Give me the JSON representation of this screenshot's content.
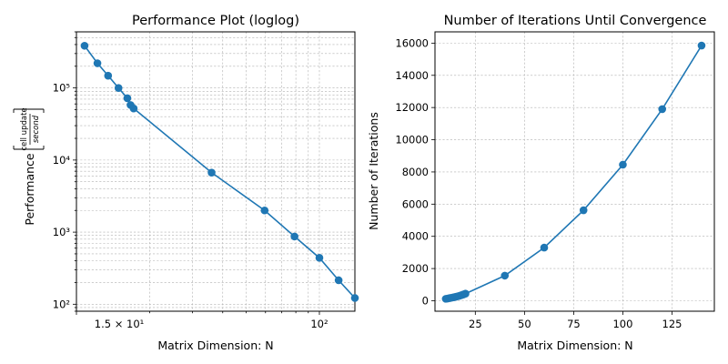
{
  "chart_data": [
    {
      "type": "line",
      "title": "Performance Plot (loglog)",
      "xlabel": "Matrix Dimension: N",
      "ylabel_prefix": "Performance",
      "ylabel_fraction": {
        "numerator": "cell update",
        "denominator": "second"
      },
      "xscale": "log",
      "yscale": "log",
      "xlim": [
        10,
        140
      ],
      "ylim": [
        80,
        600000
      ],
      "grid": true,
      "x_tick_labels": [
        {
          "value": 15,
          "label": "1.5 × 10¹"
        },
        {
          "value": 100,
          "label": "10²"
        }
      ],
      "y_tick_labels": [
        {
          "value": 100,
          "label": "10²"
        },
        {
          "value": 1000,
          "label": "10³"
        },
        {
          "value": 10000,
          "label": "10⁴"
        },
        {
          "value": 100000,
          "label": "10⁵"
        }
      ],
      "color": "#1f77b4",
      "x": [
        10.8,
        12.2,
        13.5,
        14.9,
        16.2,
        16.7,
        17.2,
        36.0,
        59.5,
        79.0,
        100.0,
        120.0,
        140.0
      ],
      "y": [
        385000,
        220000,
        148000,
        100000,
        72000,
        58000,
        52000,
        6700,
        2000,
        870,
        440,
        215,
        122
      ]
    },
    {
      "type": "line",
      "title": "Number of Iterations Until Convergence",
      "xlabel": "Matrix Dimension: N",
      "ylabel": "Number of Iterations",
      "xlim": [
        4.5,
        146.5
      ],
      "ylim": [
        -650,
        16700
      ],
      "grid": true,
      "x_ticks": [
        25,
        50,
        75,
        100,
        125
      ],
      "y_ticks": [
        0,
        2000,
        4000,
        6000,
        8000,
        10000,
        12000,
        14000,
        16000
      ],
      "color": "#1f77b4",
      "x": [
        10,
        11,
        12,
        13,
        14,
        15,
        16,
        17,
        18,
        19,
        20,
        40,
        60,
        80,
        100,
        120,
        140
      ],
      "y": [
        120,
        140,
        165,
        190,
        215,
        245,
        275,
        310,
        350,
        390,
        440,
        1560,
        3300,
        5620,
        8450,
        11900,
        15850
      ]
    }
  ]
}
